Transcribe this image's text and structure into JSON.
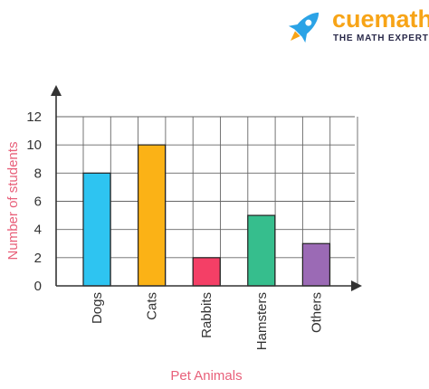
{
  "brand": {
    "name": "cuemath",
    "tagline": "THE MATH EXPERT",
    "logo_icon": "rocket-icon",
    "colors": {
      "name": "#f7a417",
      "rocket_blue": "#2ba3e6",
      "rocket_orange": "#f7a417"
    }
  },
  "chart_data": {
    "type": "bar",
    "title": "",
    "xlabel": "Pet Animals",
    "ylabel": "Number of students",
    "categories": [
      "Dogs",
      "Cats",
      "Rabbits",
      "Hamsters",
      "Others"
    ],
    "values": [
      8,
      10,
      2,
      5,
      3
    ],
    "colors": [
      "#2ec4f1",
      "#fbb216",
      "#f43f66",
      "#36be8d",
      "#9b6ab5"
    ],
    "ylim": [
      0,
      12
    ],
    "yticks": [
      0,
      2,
      4,
      6,
      8,
      10,
      12
    ],
    "grid": true,
    "legend": "none",
    "axis_label_color": "#e8607a"
  }
}
